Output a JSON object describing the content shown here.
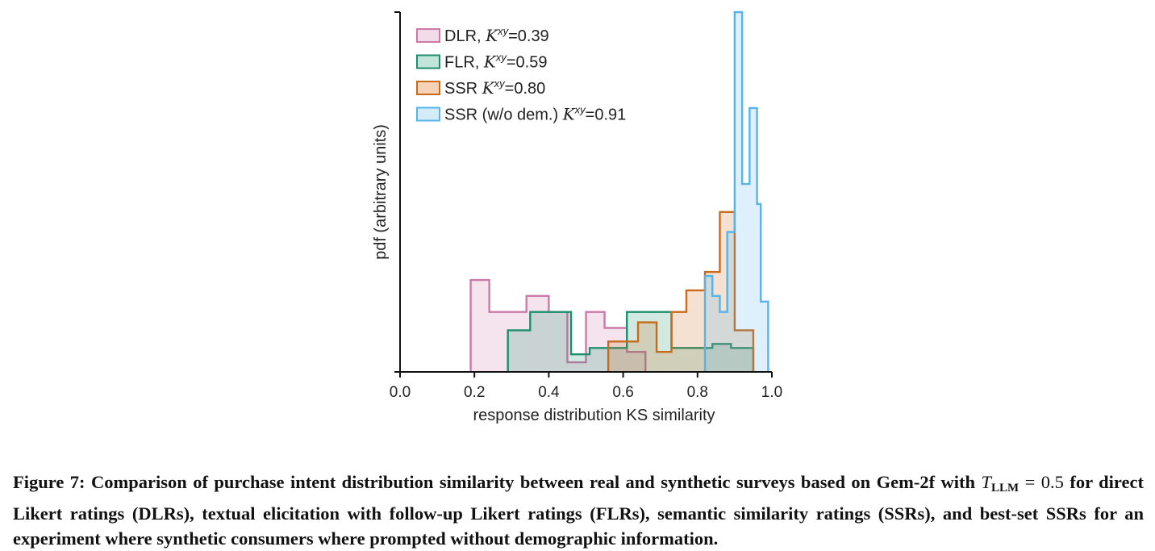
{
  "chart_data": {
    "type": "histogram",
    "xlabel": "response distribution KS similarity",
    "ylabel": "pdf (arbitrary units)",
    "xlim": [
      0.0,
      1.0
    ],
    "ylim": [
      0,
      4.5
    ],
    "xticks": [
      "0.0",
      "0.2",
      "0.4",
      "0.6",
      "0.8",
      "1.0"
    ],
    "legend_position": "top-left",
    "series": [
      {
        "name": "DLR",
        "label_prefix": "DLR, ",
        "k_value": "=0.39",
        "color": "#cc79a7",
        "fill": "#f3dcea",
        "bin_edges": [
          0.19,
          0.24,
          0.29,
          0.34,
          0.4,
          0.45,
          0.5,
          0.55,
          0.61,
          0.66
        ],
        "values": [
          1.15,
          0.75,
          0.75,
          0.95,
          0.75,
          0.12,
          0.75,
          0.55,
          0.25
        ]
      },
      {
        "name": "FLR",
        "label_prefix": "FLR, ",
        "k_value": "=0.59",
        "color": "#1d8f6e",
        "fill": "#c2e5da",
        "bin_edges": [
          0.29,
          0.35,
          0.4,
          0.46,
          0.51,
          0.56,
          0.61,
          0.67,
          0.73,
          0.78,
          0.84,
          0.89,
          0.95
        ],
        "values": [
          0.52,
          0.75,
          0.75,
          0.22,
          0.3,
          0.3,
          0.75,
          0.75,
          0.3,
          0.3,
          0.35,
          0.3
        ]
      },
      {
        "name": "SSR",
        "label_prefix": "SSR ",
        "k_value": "=0.80",
        "color": "#c96a1a",
        "fill": "#f6d2b6",
        "bin_edges": [
          0.56,
          0.6,
          0.64,
          0.69,
          0.73,
          0.77,
          0.82,
          0.86,
          0.9,
          0.95
        ],
        "values": [
          0.38,
          0.38,
          0.62,
          0.25,
          0.75,
          1.02,
          1.25,
          2.0,
          0.52
        ]
      },
      {
        "name": "SSR (w/o dem.)",
        "label_prefix": "SSR (w/o dem.) ",
        "k_value": "=0.91",
        "color": "#56b4e9",
        "fill": "#d3ecf8",
        "bin_edges": [
          0.82,
          0.84,
          0.86,
          0.88,
          0.9,
          0.92,
          0.94,
          0.96,
          0.97,
          0.99
        ],
        "values": [
          1.2,
          0.95,
          0.75,
          1.75,
          4.5,
          2.35,
          3.3,
          2.1,
          0.88
        ]
      }
    ]
  },
  "legend_kappa": "K",
  "legend_kappa_sup": "xy",
  "caption": {
    "lead": "Figure 7: Comparison of purchase intent distribution similarity between real and synthetic surveys based on Gem-2f with ",
    "t_symbol": "T",
    "t_subscript": "LLM",
    "t_value": " = 0.5",
    "rest": " for direct Likert ratings (DLRs), textual elicitation with follow-up Likert ratings (FLRs), semantic similarity ratings (SSRs), and best-set SSRs for an experiment where synthetic consumers where prompted without demographic information."
  }
}
